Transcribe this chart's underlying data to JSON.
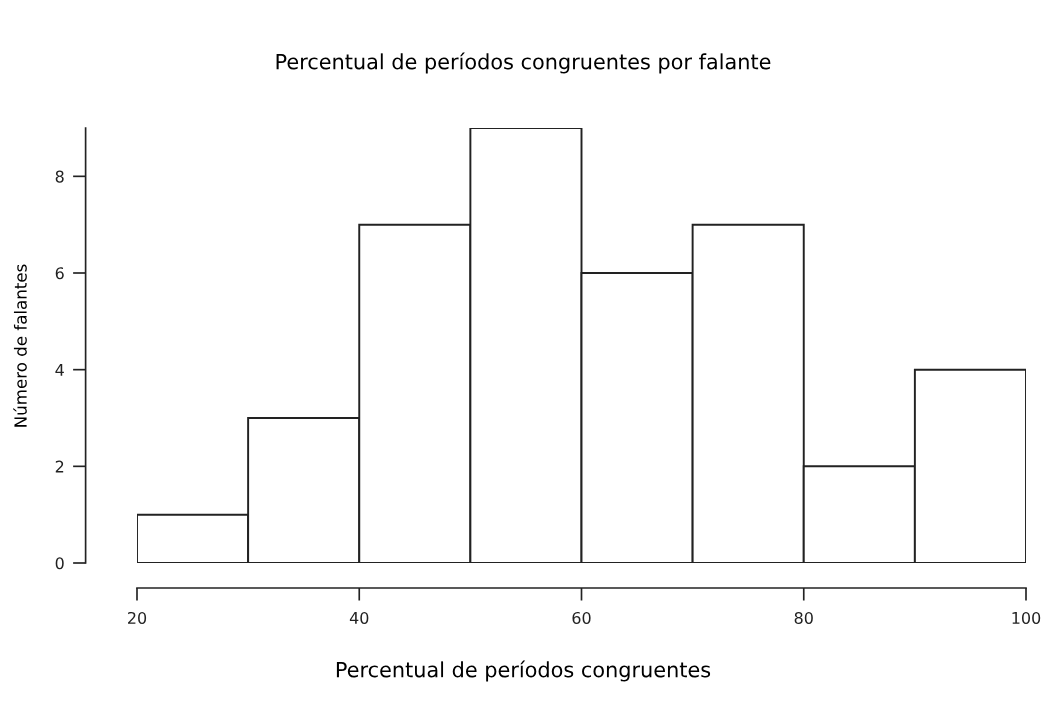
{
  "chart_data": {
    "type": "histogram",
    "title": "Percentual de períodos congruentes por falante",
    "xlabel": "Percentual de períodos congruentes",
    "ylabel": "Número de falantes",
    "bins": [
      20,
      30,
      40,
      50,
      60,
      70,
      80,
      90,
      100
    ],
    "values": [
      1,
      3,
      7,
      9,
      6,
      7,
      2,
      4
    ],
    "color": "#ffffff",
    "xlim": [
      20,
      100
    ],
    "ylim": [
      0,
      9
    ],
    "xticks": [
      20,
      40,
      60,
      80,
      100
    ],
    "yticks": [
      0,
      2,
      4,
      6,
      8
    ],
    "grid": false,
    "legend": false
  }
}
